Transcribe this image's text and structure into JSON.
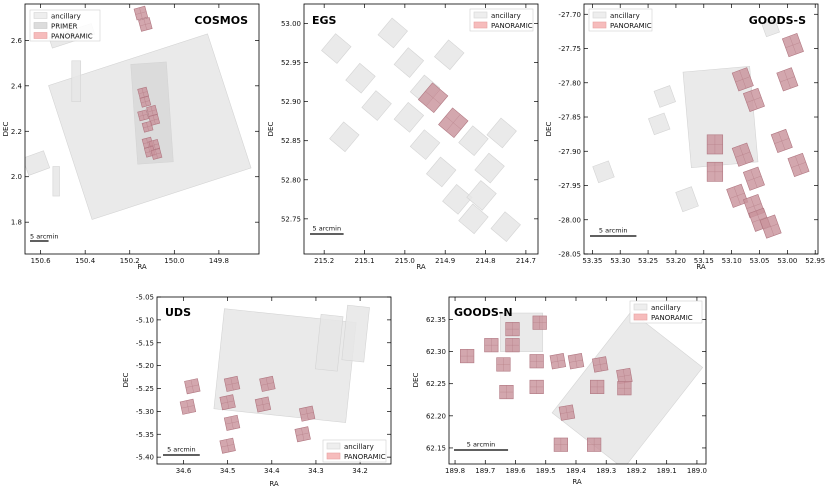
{
  "colors": {
    "ancillary_fill": "#e6e6e6",
    "ancillary_edge": "#d4d4d4",
    "primer_fill": "#d9d9d9",
    "panoramic_fill": "#c9949c",
    "panoramic_edge": "#b07680",
    "legend_panoramic": "#f6bcbc",
    "legend_ancillary": "#eeeeee",
    "legend_primer": "#dcdcdc"
  },
  "chart_data": [
    {
      "type": "scatter",
      "field": "COSMOS",
      "title": "COSMOS",
      "xlabel": "RA",
      "ylabel": "DEC",
      "xlim": [
        150.67,
        149.62
      ],
      "ylim": [
        1.66,
        2.76
      ],
      "xticks": [
        150.6,
        150.4,
        150.2,
        150.0,
        149.8
      ],
      "xtick_labels": [
        "150.6",
        "150.4",
        "150.2",
        "150.0",
        "149.8"
      ],
      "yticks": [
        1.8,
        2.0,
        2.2,
        2.4,
        2.6
      ],
      "ytick_labels": [
        "1.8",
        "2.0",
        "2.2",
        "2.4",
        "2.6"
      ],
      "legend": [
        "ancillary",
        "PRIMER",
        "PANORAMIC"
      ],
      "legend_loc": "top-left",
      "scale_label": "5 arcmin",
      "scale_deg": 0.0833,
      "ancillary": [
        {
          "ra": 150.11,
          "dec": 2.22,
          "w": 0.75,
          "h": 0.62,
          "rot": 18
        },
        {
          "ra": 150.62,
          "dec": 2.06,
          "w": 0.1,
          "h": 0.08,
          "rot": 20
        },
        {
          "ra": 150.44,
          "dec": 2.42,
          "w": 0.04,
          "h": 0.18,
          "rot": 0
        },
        {
          "ra": 150.53,
          "dec": 1.98,
          "w": 0.03,
          "h": 0.13,
          "rot": 0
        },
        {
          "ra": 150.46,
          "dec": 2.62,
          "w": 0.2,
          "h": 0.05,
          "rot": 18
        }
      ],
      "primer": [
        {
          "ra": 150.1,
          "dec": 2.28,
          "w": 0.16,
          "h": 0.44,
          "rot": 4
        }
      ],
      "panoramic": [
        {
          "ra": 150.15,
          "dec": 2.72,
          "w": 0.05,
          "h": 0.05,
          "rot": 15
        },
        {
          "ra": 150.13,
          "dec": 2.67,
          "w": 0.05,
          "h": 0.05,
          "rot": 15
        },
        {
          "ra": 150.14,
          "dec": 2.37,
          "w": 0.04,
          "h": 0.04,
          "rot": 15
        },
        {
          "ra": 150.13,
          "dec": 2.33,
          "w": 0.04,
          "h": 0.04,
          "rot": 15
        },
        {
          "ra": 150.1,
          "dec": 2.29,
          "w": 0.04,
          "h": 0.04,
          "rot": 15
        },
        {
          "ra": 150.09,
          "dec": 2.25,
          "w": 0.04,
          "h": 0.04,
          "rot": 15
        },
        {
          "ra": 150.14,
          "dec": 2.27,
          "w": 0.04,
          "h": 0.04,
          "rot": 15
        },
        {
          "ra": 150.12,
          "dec": 2.22,
          "w": 0.04,
          "h": 0.04,
          "rot": 15
        },
        {
          "ra": 150.12,
          "dec": 2.15,
          "w": 0.04,
          "h": 0.04,
          "rot": 15
        },
        {
          "ra": 150.09,
          "dec": 2.14,
          "w": 0.04,
          "h": 0.04,
          "rot": 15
        },
        {
          "ra": 150.11,
          "dec": 2.11,
          "w": 0.04,
          "h": 0.04,
          "rot": 15
        },
        {
          "ra": 150.08,
          "dec": 2.1,
          "w": 0.04,
          "h": 0.04,
          "rot": 15
        }
      ]
    },
    {
      "type": "scatter",
      "field": "EGS",
      "title": "EGS",
      "xlabel": "RA",
      "ylabel": "DEC",
      "xlim": [
        215.25,
        214.67
      ],
      "ylim": [
        52.705,
        53.025
      ],
      "xticks": [
        215.2,
        215.1,
        215.0,
        214.9,
        214.8,
        214.7
      ],
      "xtick_labels": [
        "215.2",
        "215.1",
        "215.0",
        "214.9",
        "214.8",
        "214.7"
      ],
      "yticks": [
        52.75,
        52.8,
        52.85,
        52.9,
        52.95,
        53.0
      ],
      "ytick_labels": [
        "52.75",
        "52.80",
        "52.85",
        "52.90",
        "52.95",
        "53.00"
      ],
      "legend": [
        "ancillary",
        "PANORAMIC"
      ],
      "legend_loc": "top-right",
      "scale_label": "5 arcmin",
      "scale_deg": 0.0833,
      "ancillary": [
        {
          "ra": 215.17,
          "dec": 52.968,
          "w": 0.05,
          "h": 0.028,
          "rot": -40
        },
        {
          "ra": 215.11,
          "dec": 52.93,
          "w": 0.05,
          "h": 0.028,
          "rot": -40
        },
        {
          "ra": 215.07,
          "dec": 52.895,
          "w": 0.05,
          "h": 0.028,
          "rot": -40
        },
        {
          "ra": 215.03,
          "dec": 52.988,
          "w": 0.05,
          "h": 0.028,
          "rot": -40
        },
        {
          "ra": 214.99,
          "dec": 52.95,
          "w": 0.05,
          "h": 0.028,
          "rot": -40
        },
        {
          "ra": 214.95,
          "dec": 52.915,
          "w": 0.05,
          "h": 0.028,
          "rot": -40
        },
        {
          "ra": 214.99,
          "dec": 52.88,
          "w": 0.05,
          "h": 0.028,
          "rot": -40
        },
        {
          "ra": 214.95,
          "dec": 52.845,
          "w": 0.05,
          "h": 0.028,
          "rot": -40
        },
        {
          "ra": 214.91,
          "dec": 52.81,
          "w": 0.05,
          "h": 0.028,
          "rot": -40
        },
        {
          "ra": 214.87,
          "dec": 52.775,
          "w": 0.05,
          "h": 0.028,
          "rot": -40
        },
        {
          "ra": 214.83,
          "dec": 52.75,
          "w": 0.05,
          "h": 0.028,
          "rot": -40
        },
        {
          "ra": 214.89,
          "dec": 52.96,
          "w": 0.05,
          "h": 0.028,
          "rot": -40
        },
        {
          "ra": 214.83,
          "dec": 52.85,
          "w": 0.05,
          "h": 0.028,
          "rot": -40
        },
        {
          "ra": 214.79,
          "dec": 52.815,
          "w": 0.05,
          "h": 0.028,
          "rot": -40
        },
        {
          "ra": 214.76,
          "dec": 52.86,
          "w": 0.05,
          "h": 0.028,
          "rot": -40
        },
        {
          "ra": 214.75,
          "dec": 52.74,
          "w": 0.05,
          "h": 0.028,
          "rot": -40
        },
        {
          "ra": 215.15,
          "dec": 52.855,
          "w": 0.05,
          "h": 0.028,
          "rot": -40
        },
        {
          "ra": 214.81,
          "dec": 52.78,
          "w": 0.05,
          "h": 0.028,
          "rot": -40
        }
      ],
      "panoramic": [
        {
          "ra": 214.93,
          "dec": 52.905,
          "w": 0.05,
          "h": 0.028,
          "rot": -40
        },
        {
          "ra": 214.88,
          "dec": 52.873,
          "w": 0.05,
          "h": 0.028,
          "rot": -40
        }
      ]
    },
    {
      "type": "scatter",
      "field": "GOODS-S",
      "title": "GOODS-S",
      "xlabel": "RA",
      "ylabel": "DEC",
      "xlim": [
        53.365,
        52.945
      ],
      "ylim": [
        -28.05,
        -27.685
      ],
      "xticks": [
        53.35,
        53.3,
        53.25,
        53.2,
        53.15,
        53.1,
        53.05,
        53.0,
        52.95
      ],
      "xtick_labels": [
        "53.35",
        "53.30",
        "53.25",
        "53.20",
        "53.15",
        "53.10",
        "53.05",
        "53.00",
        "52.95"
      ],
      "yticks": [
        -27.7,
        -27.75,
        -27.8,
        -27.85,
        -27.9,
        -27.95,
        -28.0,
        -28.05
      ],
      "ytick_labels": [
        "-27.70",
        "-27.75",
        "-27.80",
        "-27.85",
        "-27.90",
        "-27.95",
        "-28.00",
        "-28.05"
      ],
      "legend": [
        "ancillary",
        "PANORAMIC"
      ],
      "legend_loc": "top-left",
      "scale_label": "5 arcmin",
      "scale_deg": 0.0833,
      "ancillary": [
        {
          "ra": 53.12,
          "dec": -27.85,
          "w": 0.12,
          "h": 0.14,
          "rot": 5
        },
        {
          "ra": 53.22,
          "dec": -27.82,
          "w": 0.03,
          "h": 0.025,
          "rot": 20
        },
        {
          "ra": 53.23,
          "dec": -27.86,
          "w": 0.03,
          "h": 0.025,
          "rot": 20
        },
        {
          "ra": 53.33,
          "dec": -27.93,
          "w": 0.03,
          "h": 0.025,
          "rot": 20
        },
        {
          "ra": 53.03,
          "dec": -27.72,
          "w": 0.025,
          "h": 0.02,
          "rot": 20
        },
        {
          "ra": 53.18,
          "dec": -27.97,
          "w": 0.03,
          "h": 0.03,
          "rot": 20
        }
      ],
      "panoramic": [
        {
          "ra": 52.99,
          "dec": -27.745,
          "w": 0.028,
          "h": 0.028,
          "rot": 20
        },
        {
          "ra": 53.0,
          "dec": -27.795,
          "w": 0.028,
          "h": 0.028,
          "rot": 20
        },
        {
          "ra": 53.08,
          "dec": -27.795,
          "w": 0.028,
          "h": 0.028,
          "rot": 20
        },
        {
          "ra": 53.06,
          "dec": -27.825,
          "w": 0.028,
          "h": 0.028,
          "rot": 20
        },
        {
          "ra": 53.13,
          "dec": -27.89,
          "w": 0.028,
          "h": 0.028,
          "rot": 0
        },
        {
          "ra": 53.08,
          "dec": -27.905,
          "w": 0.028,
          "h": 0.028,
          "rot": 20
        },
        {
          "ra": 53.01,
          "dec": -27.885,
          "w": 0.028,
          "h": 0.028,
          "rot": 20
        },
        {
          "ra": 52.98,
          "dec": -27.92,
          "w": 0.028,
          "h": 0.028,
          "rot": 20
        },
        {
          "ra": 53.13,
          "dec": -27.93,
          "w": 0.028,
          "h": 0.028,
          "rot": 0
        },
        {
          "ra": 53.06,
          "dec": -27.94,
          "w": 0.028,
          "h": 0.028,
          "rot": 20
        },
        {
          "ra": 53.09,
          "dec": -27.965,
          "w": 0.028,
          "h": 0.028,
          "rot": 20
        },
        {
          "ra": 53.06,
          "dec": -27.98,
          "w": 0.028,
          "h": 0.028,
          "rot": 20
        },
        {
          "ra": 53.05,
          "dec": -28.0,
          "w": 0.028,
          "h": 0.028,
          "rot": 20
        },
        {
          "ra": 53.03,
          "dec": -28.01,
          "w": 0.028,
          "h": 0.028,
          "rot": 20
        }
      ]
    },
    {
      "type": "scatter",
      "field": "UDS",
      "title": "UDS",
      "xlabel": "RA",
      "ylabel": "DEC",
      "xlim": [
        34.66,
        34.13
      ],
      "ylim": [
        -5.415,
        -5.05
      ],
      "xticks": [
        34.6,
        34.5,
        34.4,
        34.3,
        34.2
      ],
      "xtick_labels": [
        "34.6",
        "34.5",
        "34.4",
        "34.3",
        "34.2"
      ],
      "yticks": [
        -5.05,
        -5.1,
        -5.15,
        -5.2,
        -5.25,
        -5.3,
        -5.35,
        -5.4
      ],
      "ytick_labels": [
        "-5.05",
        "-5.10",
        "-5.15",
        "-5.20",
        "-5.25",
        "-5.30",
        "-5.35",
        "-5.40"
      ],
      "legend": [
        "ancillary",
        "PANORAMIC"
      ],
      "legend_loc": "bottom-right",
      "scale_label": "5 arcmin",
      "scale_deg": 0.0833,
      "ancillary": [
        {
          "ra": 34.37,
          "dec": -5.2,
          "w": 0.3,
          "h": 0.22,
          "rot": -6
        },
        {
          "ra": 34.21,
          "dec": -5.13,
          "w": 0.05,
          "h": 0.12,
          "rot": -6
        },
        {
          "ra": 34.27,
          "dec": -5.15,
          "w": 0.05,
          "h": 0.12,
          "rot": -6
        }
      ],
      "panoramic": [
        {
          "ra": 34.58,
          "dec": -5.245,
          "w": 0.03,
          "h": 0.028,
          "rot": 12
        },
        {
          "ra": 34.59,
          "dec": -5.29,
          "w": 0.03,
          "h": 0.028,
          "rot": 12
        },
        {
          "ra": 34.49,
          "dec": -5.24,
          "w": 0.03,
          "h": 0.028,
          "rot": 12
        },
        {
          "ra": 34.5,
          "dec": -5.28,
          "w": 0.03,
          "h": 0.028,
          "rot": 12
        },
        {
          "ra": 34.49,
          "dec": -5.325,
          "w": 0.03,
          "h": 0.028,
          "rot": 12
        },
        {
          "ra": 34.5,
          "dec": -5.375,
          "w": 0.03,
          "h": 0.028,
          "rot": 12
        },
        {
          "ra": 34.41,
          "dec": -5.24,
          "w": 0.03,
          "h": 0.028,
          "rot": 12
        },
        {
          "ra": 34.42,
          "dec": -5.285,
          "w": 0.03,
          "h": 0.028,
          "rot": 12
        },
        {
          "ra": 34.32,
          "dec": -5.305,
          "w": 0.03,
          "h": 0.028,
          "rot": 12
        },
        {
          "ra": 34.33,
          "dec": -5.35,
          "w": 0.03,
          "h": 0.028,
          "rot": 12
        }
      ]
    },
    {
      "type": "scatter",
      "field": "GOODS-N",
      "title": "GOODS-N",
      "xlabel": "RA",
      "ylabel": "DEC",
      "xlim": [
        189.82,
        188.97
      ],
      "ylim": [
        62.125,
        62.385
      ],
      "xticks": [
        189.8,
        189.7,
        189.6,
        189.5,
        189.4,
        189.3,
        189.2,
        189.1,
        189.0
      ],
      "xtick_labels": [
        "189.8",
        "189.7",
        "189.6",
        "189.5",
        "189.4",
        "189.3",
        "189.2",
        "189.1",
        "189.0"
      ],
      "yticks": [
        62.15,
        62.2,
        62.25,
        62.3,
        62.35
      ],
      "ytick_labels": [
        "62.15",
        "62.20",
        "62.25",
        "62.30",
        "62.35"
      ],
      "legend": [
        "ancillary",
        "PANORAMIC"
      ],
      "legend_loc": "top-right",
      "scale_label": "5 arcmin",
      "scale_deg": 0.1788,
      "ancillary": [
        {
          "ra": 189.23,
          "dec": 62.24,
          "w": 0.3,
          "h": 0.2,
          "rot": -38
        },
        {
          "ra": 189.58,
          "dec": 62.33,
          "w": 0.14,
          "h": 0.06,
          "rot": 0
        }
      ],
      "panoramic": [
        {
          "ra": 189.76,
          "dec": 62.293,
          "w": 0.045,
          "h": 0.021,
          "rot": 0
        },
        {
          "ra": 189.68,
          "dec": 62.31,
          "w": 0.045,
          "h": 0.021,
          "rot": 0
        },
        {
          "ra": 189.61,
          "dec": 62.335,
          "w": 0.045,
          "h": 0.021,
          "rot": 0
        },
        {
          "ra": 189.61,
          "dec": 62.31,
          "w": 0.045,
          "h": 0.021,
          "rot": 0
        },
        {
          "ra": 189.64,
          "dec": 62.28,
          "w": 0.045,
          "h": 0.021,
          "rot": 0
        },
        {
          "ra": 189.63,
          "dec": 62.237,
          "w": 0.045,
          "h": 0.021,
          "rot": 0
        },
        {
          "ra": 189.52,
          "dec": 62.345,
          "w": 0.045,
          "h": 0.021,
          "rot": 0
        },
        {
          "ra": 189.53,
          "dec": 62.285,
          "w": 0.045,
          "h": 0.021,
          "rot": 0
        },
        {
          "ra": 189.53,
          "dec": 62.245,
          "w": 0.045,
          "h": 0.021,
          "rot": 0
        },
        {
          "ra": 189.46,
          "dec": 62.285,
          "w": 0.045,
          "h": 0.021,
          "rot": 10
        },
        {
          "ra": 189.4,
          "dec": 62.285,
          "w": 0.045,
          "h": 0.021,
          "rot": 10
        },
        {
          "ra": 189.32,
          "dec": 62.28,
          "w": 0.045,
          "h": 0.021,
          "rot": 10
        },
        {
          "ra": 189.33,
          "dec": 62.245,
          "w": 0.045,
          "h": 0.021,
          "rot": 0
        },
        {
          "ra": 189.24,
          "dec": 62.262,
          "w": 0.045,
          "h": 0.021,
          "rot": 10
        },
        {
          "ra": 189.24,
          "dec": 62.243,
          "w": 0.045,
          "h": 0.021,
          "rot": 0
        },
        {
          "ra": 189.43,
          "dec": 62.205,
          "w": 0.045,
          "h": 0.021,
          "rot": 10
        },
        {
          "ra": 189.45,
          "dec": 62.155,
          "w": 0.045,
          "h": 0.021,
          "rot": 0
        },
        {
          "ra": 189.34,
          "dec": 62.155,
          "w": 0.045,
          "h": 0.021,
          "rot": 0
        }
      ]
    }
  ]
}
